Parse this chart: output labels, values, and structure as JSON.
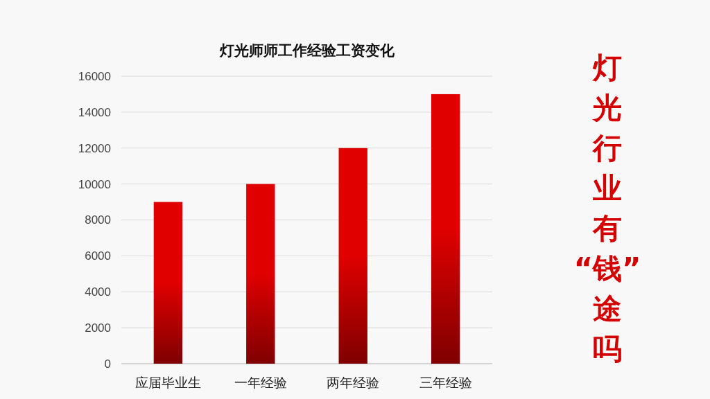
{
  "chart_data": {
    "type": "bar",
    "title": "灯光师师工作经验工资变化",
    "categories": [
      "应届毕业生",
      "一年经验",
      "两年经验",
      "三年经验"
    ],
    "values": [
      9000,
      10000,
      12000,
      15000
    ],
    "color": "#e00000",
    "ylim": [
      0,
      16000
    ],
    "yticks": [
      0,
      2000,
      4000,
      6000,
      8000,
      10000,
      12000,
      14000,
      16000
    ],
    "grid": "y",
    "annotations": [
      "灯光行业有“钱”途吗"
    ]
  }
}
